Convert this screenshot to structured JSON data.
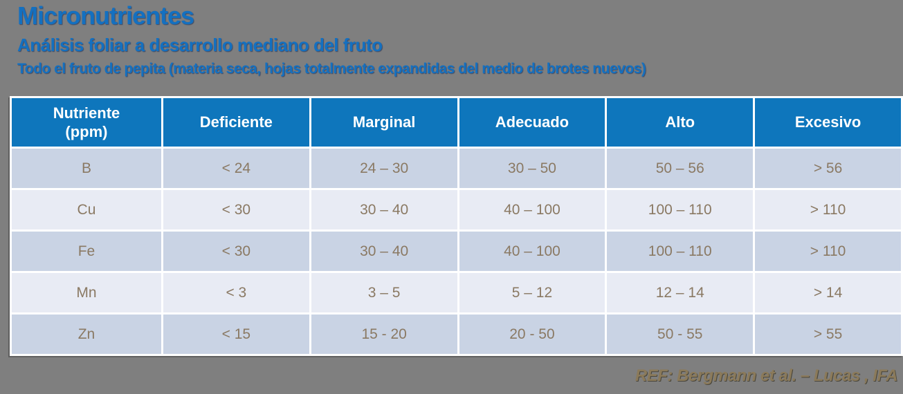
{
  "slide": {
    "title": "Micronutrientes",
    "subtitle": "Análisis foliar a desarrollo mediano del fruto",
    "subtitle2": "Todo el fruto de pepita (materia seca, hojas totalmente expandidas del medio de brotes nuevos)",
    "footer_ref": "REF: Bergmann et al. – Lucas , IFA"
  },
  "colors": {
    "background_gray": "#7F7F7F",
    "title_blue": "#1470C0",
    "header_blue": "#0E76BC",
    "row_dark": "#C9D3E4",
    "row_light": "#E8EBF4",
    "cell_text": "#8A7963",
    "header_text": "#FFFFFF",
    "footer_text": "#8B7A5A"
  },
  "chart_data": {
    "type": "table",
    "title": "Micronutrientes",
    "subtitle": "Análisis foliar a desarrollo mediano del fruto",
    "note": "Todo el fruto de pepita (materia seca, hojas totalmente expandidas del medio de brotes nuevos)",
    "unit": "ppm",
    "columns": [
      "Nutriente (ppm)",
      "Deficiente",
      "Marginal",
      "Adecuado",
      "Alto",
      "Excesivo"
    ],
    "rows": [
      [
        "B",
        "< 24",
        "24 – 30",
        "30 – 50",
        "50 – 56",
        "> 56"
      ],
      [
        "Cu",
        "< 30",
        "30 – 40",
        "40 – 100",
        "100 – 110",
        "> 110"
      ],
      [
        "Fe",
        "< 30",
        "30 – 40",
        "40 – 100",
        "100 – 110",
        "> 110"
      ],
      [
        "Mn",
        "< 3",
        "3 – 5",
        "5 – 12",
        "12 – 14",
        "> 14"
      ],
      [
        "Zn",
        "< 15",
        "15 - 20",
        "20 - 50",
        "50 - 55",
        "> 55"
      ]
    ],
    "row_shading": [
      "dark",
      "light",
      "dark",
      "light",
      "dark"
    ],
    "source": "REF: Bergmann et al. – Lucas , IFA"
  }
}
